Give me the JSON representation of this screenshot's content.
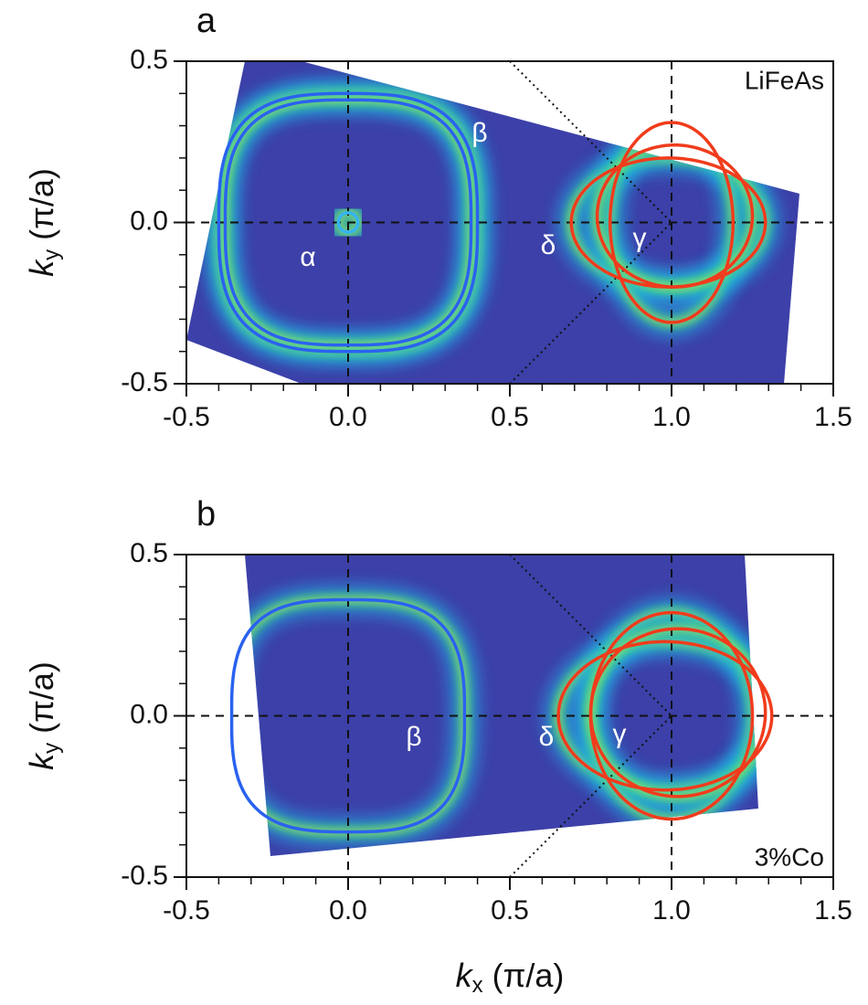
{
  "chart_data": [
    {
      "type": "fermi-surface-map",
      "panel_label": "a",
      "sample": "LiFeAs",
      "xlim": [
        -0.5,
        1.5
      ],
      "ylim": [
        -0.5,
        0.5
      ],
      "xticks": [
        -0.5,
        {
          "value": 0,
          "label": "0.0"
        },
        0.5,
        {
          "value": 1,
          "label": "1.0"
        },
        1.5
      ],
      "yticks": [
        -0.5,
        {
          "value": 0,
          "label": "0.0"
        },
        0.5
      ],
      "ylabel": {
        "symbol": "k",
        "subscript": "y",
        "unit": " (π/a)"
      },
      "guide_x": [
        0,
        1
      ],
      "guide_y": [
        0
      ],
      "bz_lines": [
        [
          [
            0.5,
            0.5
          ],
          [
            1,
            0
          ]
        ],
        [
          [
            0.5,
            -0.5
          ],
          [
            1,
            0
          ]
        ]
      ],
      "contours": [
        {
          "shape": "superellipse",
          "color": "#2a62f0",
          "cx": 0,
          "cy": 0,
          "rx": 0.4,
          "ry": 0.4
        },
        {
          "shape": "superellipse",
          "color": "#2a62f0",
          "cx": 0,
          "cy": 0,
          "rx": 0.38,
          "ry": 0.38
        },
        {
          "shape": "ellipse",
          "color": "#34b4f0",
          "cx": 0,
          "cy": 0,
          "rx": 0.03,
          "ry": 0.03
        },
        {
          "shape": "ellipse",
          "color": "#f03c1c",
          "cx": 0.99,
          "cy": 0,
          "rx": 0.3,
          "ry": 0.2
        },
        {
          "shape": "ellipse",
          "color": "#f03c1c",
          "cx": 1,
          "cy": 0,
          "rx": 0.19,
          "ry": 0.31
        },
        {
          "shape": "ellipse",
          "color": "#f03c1c",
          "cx": 1.01,
          "cy": 0.02,
          "rx": 0.24,
          "ry": 0.22
        }
      ],
      "annotations": [
        "α",
        "β",
        "δ",
        "γ"
      ]
    },
    {
      "type": "fermi-surface-map",
      "panel_label": "b",
      "sample": "3%Co",
      "xlim": [
        -0.5,
        1.5
      ],
      "ylim": [
        -0.5,
        0.5
      ],
      "xticks": [
        -0.5,
        {
          "value": 0,
          "label": "0.0"
        },
        0.5,
        {
          "value": 1,
          "label": "1.0"
        },
        1.5
      ],
      "yticks": [
        -0.5,
        {
          "value": 0,
          "label": "0.0"
        },
        0.5
      ],
      "xlabel": {
        "symbol": "k",
        "subscript": "x",
        "unit": " (π/a)"
      },
      "ylabel": {
        "symbol": "k",
        "subscript": "y",
        "unit": " (π/a)"
      },
      "guide_x": [
        0,
        1
      ],
      "guide_y": [
        0
      ],
      "bz_lines": [
        [
          [
            0.5,
            0.5
          ],
          [
            1,
            0
          ]
        ],
        [
          [
            0.5,
            -0.5
          ],
          [
            1,
            0
          ]
        ]
      ],
      "contours": [
        {
          "shape": "superellipse",
          "color": "#2a62f0",
          "cx": 0,
          "cy": 0,
          "rx": 0.36,
          "ry": 0.36
        },
        {
          "shape": "ellipse",
          "color": "#f03c1c",
          "cx": 0.98,
          "cy": 0,
          "rx": 0.33,
          "ry": 0.23
        },
        {
          "shape": "ellipse",
          "color": "#f03c1c",
          "cx": 1,
          "cy": 0,
          "rx": 0.25,
          "ry": 0.32
        },
        {
          "shape": "ellipse",
          "color": "#f03c1c",
          "cx": 1.02,
          "cy": 0.01,
          "rx": 0.27,
          "ry": 0.26
        }
      ],
      "annotations": [
        "β",
        "δ",
        "γ"
      ]
    }
  ]
}
